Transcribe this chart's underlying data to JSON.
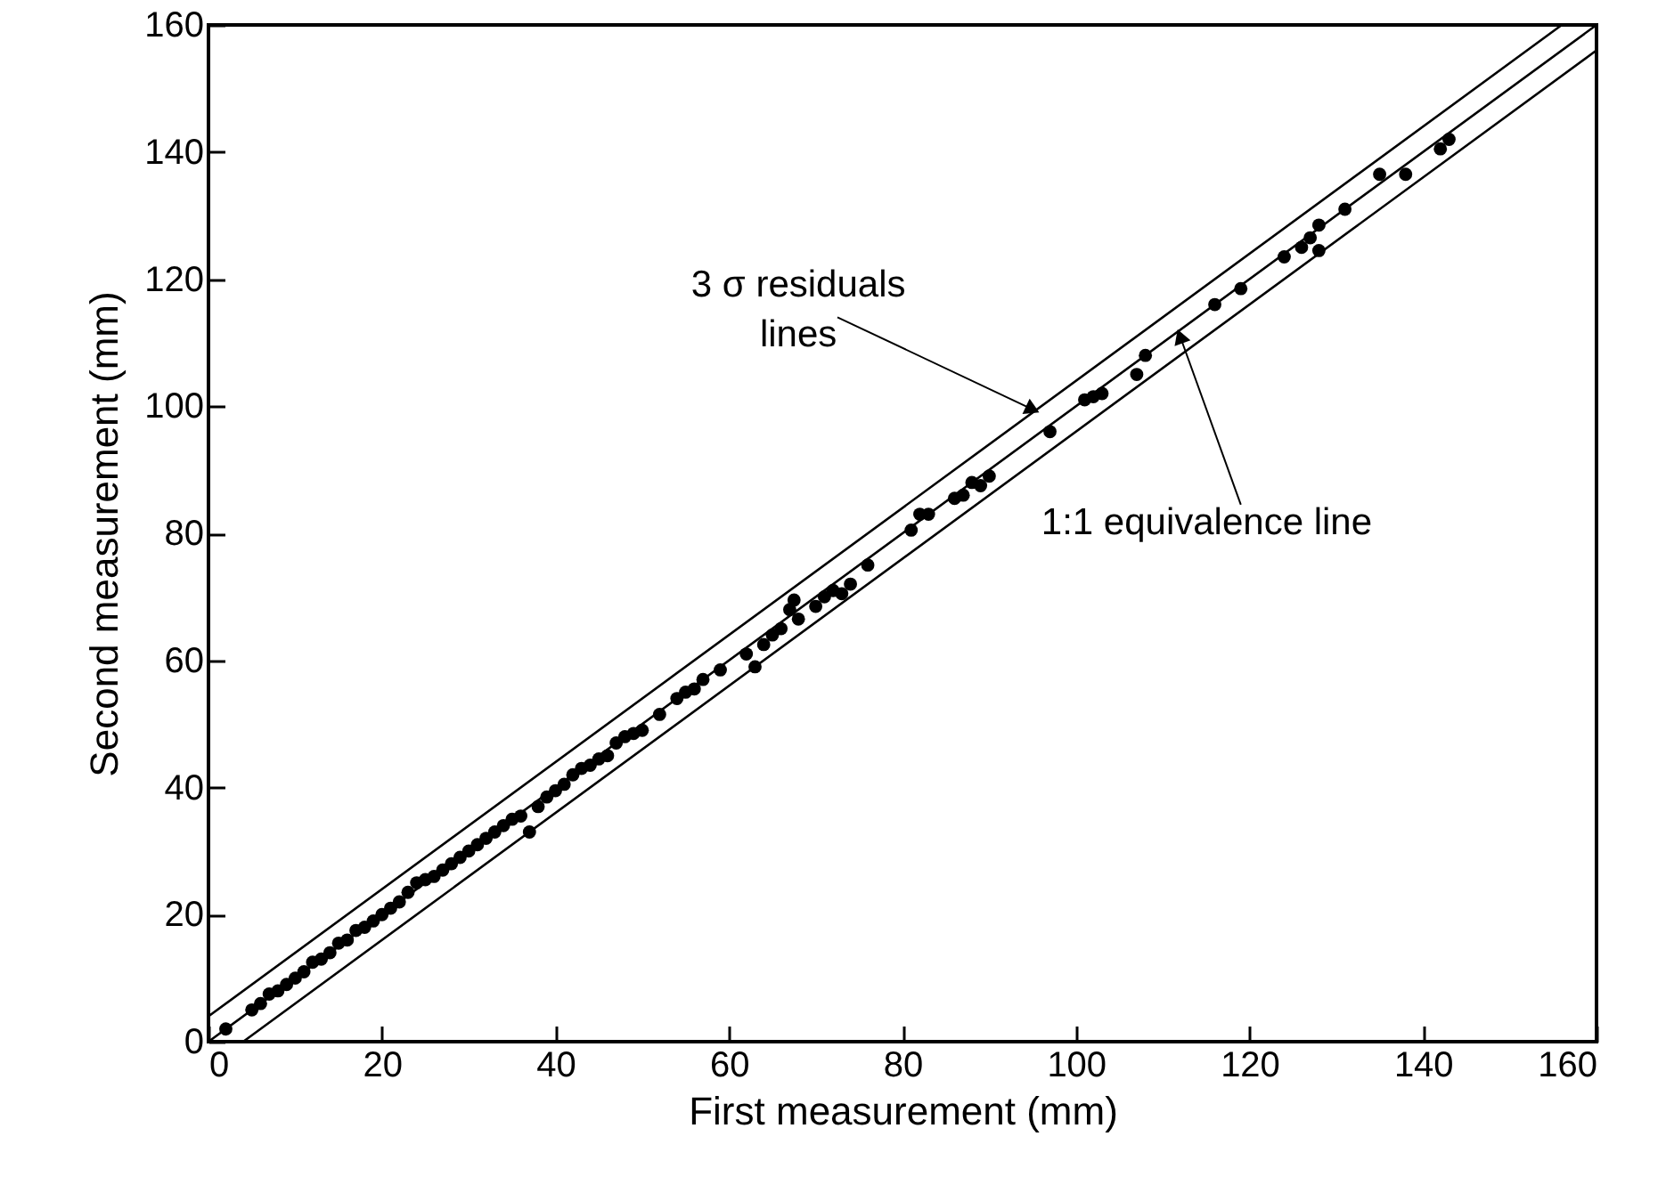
{
  "chart_data": {
    "type": "scatter",
    "xlabel": "First measurement (mm)",
    "ylabel": "Second measurement (mm)",
    "xlim": [
      0,
      160
    ],
    "ylim": [
      0,
      160
    ],
    "xticks": [
      0,
      20,
      40,
      60,
      80,
      100,
      120,
      140,
      160
    ],
    "yticks": [
      0,
      20,
      40,
      60,
      80,
      100,
      120,
      140,
      160
    ],
    "grid": false,
    "series": [
      {
        "color": "#000000",
        "marker": "circle",
        "x": [
          2,
          5,
          6,
          7,
          8,
          9,
          10,
          11,
          12,
          13,
          14,
          15,
          16,
          17,
          18,
          19,
          20,
          21,
          22,
          23,
          24,
          25,
          26,
          27,
          28,
          29,
          30,
          31,
          32,
          33,
          34,
          35,
          36,
          37,
          38,
          39,
          40,
          41,
          42,
          43,
          44,
          45,
          46,
          47,
          48,
          49,
          50,
          52,
          54,
          55,
          56,
          57,
          59,
          62,
          63,
          64,
          65,
          66,
          67,
          67.5,
          68,
          70,
          71,
          72,
          73,
          74,
          76,
          81,
          82,
          83,
          86,
          87,
          88,
          89,
          90,
          97,
          101,
          102,
          103,
          107,
          108,
          116,
          119,
          124,
          126,
          127,
          128,
          128,
          131,
          135,
          138,
          142,
          143
        ],
        "values": [
          2,
          5,
          6,
          7.5,
          8,
          9,
          10,
          11,
          12.5,
          13,
          14,
          15.5,
          16,
          17.5,
          18,
          19,
          20,
          21,
          22,
          23.5,
          25,
          25.5,
          26,
          27,
          28,
          29,
          30,
          31,
          32,
          33,
          34,
          35,
          35.5,
          33,
          37,
          38.5,
          39.5,
          40.5,
          42,
          43,
          43.5,
          44.5,
          45,
          47,
          48,
          48.5,
          49,
          51.5,
          54,
          55,
          55.5,
          57,
          58.5,
          61,
          59,
          62.5,
          64,
          65,
          68,
          69.5,
          66.5,
          68.5,
          70,
          71,
          70.5,
          72,
          75,
          80.5,
          83,
          83,
          85.5,
          86,
          88,
          87.5,
          89,
          96,
          101,
          101.5,
          102,
          105,
          108,
          116,
          118.5,
          123.5,
          125,
          126.5,
          124.5,
          128.5,
          131,
          136.5,
          136.5,
          140.5,
          142
        ]
      },
      {
        "type": "line",
        "color": "#000000",
        "line_style": "solid",
        "x": [
          0,
          160
        ],
        "values": [
          0,
          160
        ]
      },
      {
        "type": "line",
        "color": "#000000",
        "line_style": "solid",
        "x": [
          0,
          156
        ],
        "values": [
          4,
          160
        ]
      },
      {
        "type": "line",
        "color": "#000000",
        "line_style": "solid",
        "x": [
          4,
          160
        ],
        "values": [
          0,
          156
        ]
      }
    ],
    "annotations": [
      {
        "text": "3 σ residuals\nlines",
        "x": 95,
        "y": 99.5
      },
      {
        "text": "1:1 equivalence line",
        "x": 112,
        "y": 111
      }
    ]
  }
}
